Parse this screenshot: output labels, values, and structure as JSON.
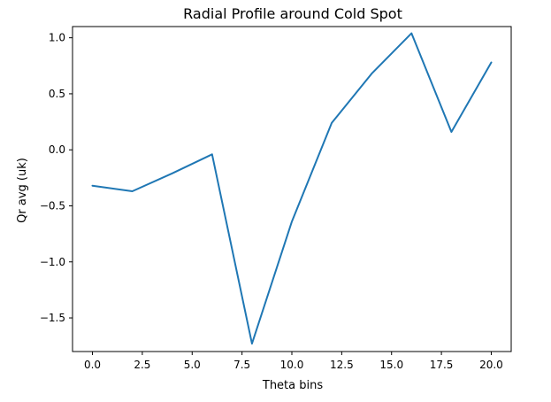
{
  "chart_data": {
    "type": "line",
    "title": "Radial Profile around Cold Spot",
    "xlabel": "Theta bins",
    "ylabel": "Qr avg (uk)",
    "xlim": [
      -1.0,
      21.0
    ],
    "ylim": [
      -1.8,
      1.1
    ],
    "xticks": [
      0.0,
      2.5,
      5.0,
      7.5,
      10.0,
      12.5,
      15.0,
      17.5,
      20.0
    ],
    "xtick_labels": [
      "0.0",
      "2.5",
      "5.0",
      "7.5",
      "10.0",
      "12.5",
      "15.0",
      "17.5",
      "20.0"
    ],
    "yticks": [
      -1.5,
      -1.0,
      -0.5,
      0.0,
      0.5,
      1.0
    ],
    "ytick_labels": [
      "−1.5",
      "−1.0",
      "−0.5",
      "0.0",
      "0.5",
      "1.0"
    ],
    "grid": false,
    "series": [
      {
        "color": "#1f77b4",
        "x": [
          0,
          2,
          4,
          6,
          8,
          10,
          12,
          14,
          16,
          18,
          20
        ],
        "y": [
          -0.32,
          -0.37,
          -0.21,
          -0.04,
          -1.73,
          -0.64,
          0.24,
          0.68,
          1.04,
          0.16,
          0.78
        ]
      }
    ]
  }
}
